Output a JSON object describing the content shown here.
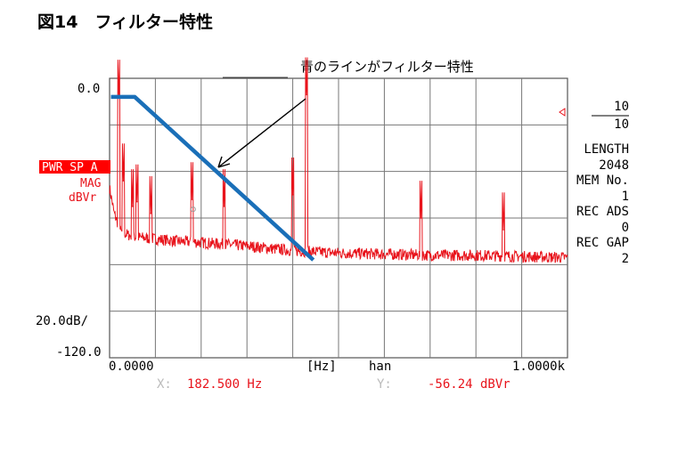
{
  "figure_title": "図14　フィルター特性",
  "callout": "青のラインがフィルター特性",
  "chart_data": {
    "type": "line",
    "title": "",
    "y_top_label": "0.0",
    "y_bottom_label": "-120.0",
    "y_scale_label": "20.0dB/",
    "ylim": [
      -120,
      0
    ],
    "xlim": [
      0,
      1000
    ],
    "x_start_label": "0.0000",
    "x_end_label": "1.0000k",
    "x_unit_label": "[Hz]",
    "window_label": "han",
    "grid": true,
    "mode_label": "PWR SP A",
    "mag_label": "MAG",
    "unit_label": "dBVr",
    "cursor": {
      "x_prefix": "X:",
      "x_value": "182.500 Hz",
      "y_prefix": "Y:",
      "y_value": "-56.24 dBVr",
      "x_hz": 182.5,
      "y_db": -56.24
    },
    "right_panel": [
      {
        "text": "10",
        "clipped": true
      },
      {
        "text": "10",
        "overline": true
      },
      {
        "text": "LENGTH"
      },
      {
        "text": "2048"
      },
      {
        "text": "MEM No."
      },
      {
        "text": "1"
      },
      {
        "text": "REC ADS"
      },
      {
        "text": "0"
      },
      {
        "text": "REC GAP"
      },
      {
        "text": "2"
      }
    ],
    "series": [
      {
        "color": "#e8141c",
        "noise_floor_db": [
          [
            0,
            -47
          ],
          [
            10,
            -58
          ],
          [
            25,
            -66
          ],
          [
            50,
            -68
          ],
          [
            100,
            -69
          ],
          [
            150,
            -70
          ],
          [
            200,
            -70.5
          ],
          [
            300,
            -72
          ],
          [
            400,
            -74
          ],
          [
            500,
            -75
          ],
          [
            600,
            -75.5
          ],
          [
            700,
            -76
          ],
          [
            800,
            -76
          ],
          [
            900,
            -76.5
          ],
          [
            1000,
            -77
          ]
        ],
        "peaks": [
          [
            20,
            -8
          ],
          [
            30,
            -44
          ],
          [
            50,
            -55
          ],
          [
            60,
            -53
          ],
          [
            90,
            -58
          ],
          [
            180,
            -52
          ],
          [
            250,
            -55
          ],
          [
            400,
            -50
          ],
          [
            430,
            -7
          ],
          [
            680,
            -60
          ],
          [
            860,
            -65
          ]
        ]
      },
      {
        "color": "#1a6fb8",
        "points": [
          [
            3,
            -8
          ],
          [
            55,
            -8
          ],
          [
            445,
            -78
          ]
        ]
      }
    ]
  }
}
